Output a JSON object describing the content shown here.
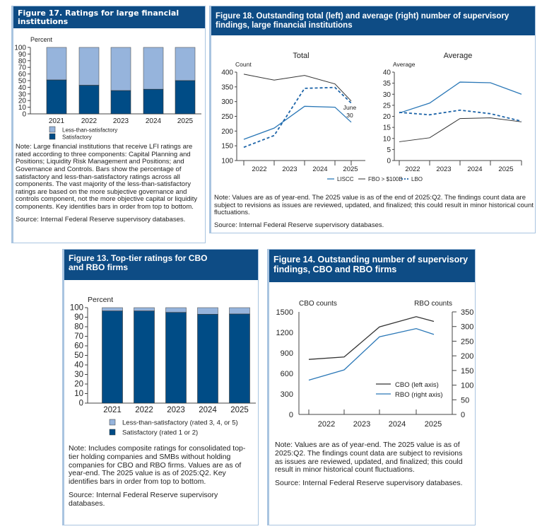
{
  "figures": {
    "fig17": {
      "title": "Figure 17. Ratings for large financial institutions",
      "note": "Note: Large financial institutions that receive LFI ratings are rated according to three components: Capital Planning and Positions; Liquidity Risk Management and Positions; and Governance and Controls. Bars show the percentage of satisfactory and less-than-satisfactory ratings across all components. The vast majority of the less-than-satisfactory ratings are based on the more subjective governance and controls component, not the more objective capital or liquidity components. Key identifies bars in order from top to bottom.",
      "source": "Source: Internal Federal Reserve supervisory databases."
    },
    "fig18": {
      "title": "Figure 18. Outstanding total (left) and average (right) number of supervisory findings, large financial institutions",
      "note": "Note: Values are as of year-end. The 2025 value is as of the end of 2025:Q2. The findings count data are subject to revisions as issues are reviewed, updated, and finalized; this could result in minor historical count fluctuations.",
      "source": "Source: Internal Federal Reserve supervisory databases."
    },
    "fig13": {
      "title": "Figure 13. Top-tier ratings for CBO and RBO firms",
      "note": "Note: Includes composite ratings for consolidated top-tier holding companies and SMBs without holding companies for CBO and RBO firms. Values are as of year-end. The 2025 value is as of 2025:Q2. Key identifies bars in order from top to bottom.",
      "source": "Source: Internal Federal Reserve supervisory databases."
    },
    "fig14": {
      "title": "Figure 14. Outstanding number of supervisory findings, CBO and RBO firms",
      "note": "Note: Values are as of year-end. The 2025 value is as of 2025:Q2. The findings count data are subject to revisions as issues are reviewed, updated, and finalized; this could result in minor historical count fluctuations.",
      "source": "Source: Internal Federal Reserve supervisory databases."
    }
  },
  "colors": {
    "header": "#0e4c85",
    "dark_bar": "#004c86",
    "light_bar": "#96b4dc",
    "liscc": "#2b78b7",
    "fbo": "#333333",
    "lbo": "#1d64a8"
  },
  "chart_data": [
    {
      "id": "fig17",
      "type": "bar",
      "stacked": true,
      "ylabel": "Percent",
      "ylim": [
        0,
        100
      ],
      "yticks": [
        "0",
        "10",
        "20",
        "30",
        "40",
        "50",
        "60",
        "70",
        "80",
        "90",
        "100"
      ],
      "categories": [
        "2021",
        "2022",
        "2023",
        "2024",
        "2025"
      ],
      "series": [
        {
          "name": "Less-than-satisfactory",
          "values": [
            49,
            57,
            65,
            63,
            50
          ]
        },
        {
          "name": "Satisfactory",
          "values": [
            51,
            43,
            35,
            37,
            50
          ]
        }
      ]
    },
    {
      "id": "fig18-total",
      "type": "line",
      "title": "Total",
      "ylabel": "Count",
      "ylim": [
        100,
        400
      ],
      "yticks": [
        "100",
        "150",
        "200",
        "250",
        "300",
        "350",
        "400"
      ],
      "categories": [
        "2022",
        "2023",
        "2024",
        "2025"
      ],
      "x": [
        "2021",
        "2022",
        "2023",
        "2024",
        "2025 Q2"
      ],
      "annotation": [
        "June",
        "30"
      ],
      "series": [
        {
          "name": "LISCC",
          "values": [
            172,
            210,
            284,
            281,
            230
          ]
        },
        {
          "name": "FBO > $100B",
          "values": [
            393,
            373,
            389,
            360,
            302
          ]
        },
        {
          "name": "LBO",
          "values": [
            145,
            185,
            345,
            348,
            295
          ]
        }
      ]
    },
    {
      "id": "fig18-average",
      "type": "line",
      "title": "Average",
      "ylabel": "Average",
      "ylim": [
        0,
        40
      ],
      "yticks": [
        "0",
        "5",
        "10",
        "15",
        "20",
        "25",
        "30",
        "35",
        "40"
      ],
      "categories": [
        "2022",
        "2023",
        "2024",
        "2025"
      ],
      "x": [
        "2021",
        "2022",
        "2023",
        "2024",
        "2025 Q2"
      ],
      "series": [
        {
          "name": "LISCC",
          "values": [
            21.5,
            26,
            35.5,
            35.2,
            30
          ]
        },
        {
          "name": "FBO > $100B",
          "values": [
            8.5,
            10.3,
            19,
            19.3,
            17.5
          ]
        },
        {
          "name": "LBO",
          "values": [
            21.8,
            20.7,
            22.8,
            21.2,
            17.8
          ]
        }
      ],
      "legend": [
        "LISCC",
        "FBO > $100B",
        "LBO"
      ]
    },
    {
      "id": "fig13",
      "type": "bar",
      "stacked": true,
      "ylabel": "Percent",
      "ylim": [
        0,
        100
      ],
      "yticks": [
        "0",
        "10",
        "20",
        "30",
        "40",
        "50",
        "60",
        "70",
        "80",
        "90",
        "100"
      ],
      "categories": [
        "2021",
        "2022",
        "2023",
        "2024",
        "2025"
      ],
      "series": [
        {
          "name": "Less-than-satisfactory (rated 3, 4, or 5)",
          "values": [
            3.5,
            3.5,
            5,
            7,
            6.7
          ]
        },
        {
          "name": "Satisfactory (rated 1 or 2)",
          "values": [
            96.5,
            96.5,
            95,
            93,
            93.3
          ]
        }
      ]
    },
    {
      "id": "fig14",
      "type": "line",
      "ylabel": "CBO counts",
      "ylabel_right": "RBO counts",
      "ylim": [
        0,
        1500
      ],
      "ylim_right": [
        0,
        350
      ],
      "yticks": [
        "0",
        "300",
        "600",
        "900",
        "1200",
        "1500"
      ],
      "yticks_right": [
        "0",
        "50",
        "100",
        "150",
        "200",
        "250",
        "300",
        "350"
      ],
      "categories": [
        "2022",
        "2023",
        "2024",
        "2025"
      ],
      "x": [
        "2021",
        "2022",
        "2023",
        "2024",
        "2025 Q2"
      ],
      "series": [
        {
          "name": "CBO (left axis)",
          "axis": "left",
          "values": [
            805,
            840,
            1280,
            1430,
            1360
          ]
        },
        {
          "name": "RBO (right axis)",
          "axis": "right",
          "values": [
            117,
            152,
            265,
            293,
            273
          ]
        }
      ]
    }
  ]
}
